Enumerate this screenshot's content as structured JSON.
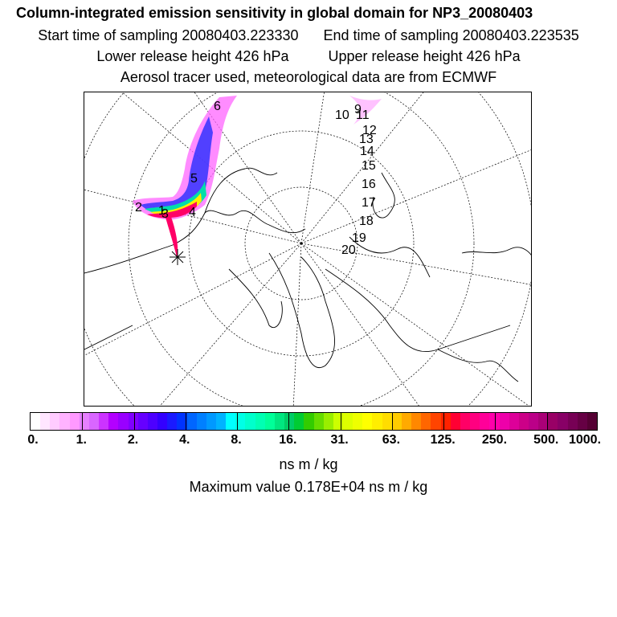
{
  "header": {
    "title": "Column-integrated emission sensitivity in global domain for NP3_20080403",
    "start_time": "Start time of sampling 20080403.223330",
    "end_time": "End time of sampling 20080403.223535",
    "lower_release": "Lower release height  426 hPa",
    "upper_release": "Upper release height  426 hPa",
    "tracer_info": "Aerosol tracer used, meteorological data are from ECMWF"
  },
  "map": {
    "trajectory_labels": [
      "1",
      "2",
      "3",
      "4",
      "5",
      "6",
      "9",
      "10",
      "11",
      "12",
      "13",
      "14",
      "15",
      "16",
      "17",
      "18",
      "19",
      "20"
    ],
    "release_marker": "release-site-star"
  },
  "colorbar": {
    "tick_labels": [
      "0.",
      "1.",
      "2.",
      "4.",
      "8.",
      "16.",
      "31.",
      "63.",
      "125.",
      "250.",
      "500.",
      "1000."
    ],
    "colors": [
      "#ffffff",
      "#ffe6ff",
      "#ffccff",
      "#ffb3ff",
      "#ff99ff",
      "#e680ff",
      "#d966ff",
      "#cc33ff",
      "#b300ff",
      "#9900ff",
      "#8000ff",
      "#6600ff",
      "#4d00ff",
      "#3300ff",
      "#1a1aff",
      "#0033ff",
      "#0066ff",
      "#0080ff",
      "#0099ff",
      "#00b3ff",
      "#00ffff",
      "#00ffe6",
      "#00ffcc",
      "#00ffb3",
      "#00ff99",
      "#00e680",
      "#00cc66",
      "#00cc33",
      "#33cc00",
      "#66dd00",
      "#99ee00",
      "#ccff00",
      "#ddff00",
      "#eeff00",
      "#ffff00",
      "#ffee00",
      "#ffdd00",
      "#ffcc00",
      "#ffaa00",
      "#ff8800",
      "#ff6600",
      "#ff4400",
      "#ff2200",
      "#ff0033",
      "#ff0066",
      "#ff0080",
      "#ff0099",
      "#ff00aa",
      "#ee00aa",
      "#dd0099",
      "#cc0088",
      "#bb0088",
      "#aa0077",
      "#990066",
      "#880066",
      "#770055",
      "#660044",
      "#550033"
    ],
    "units": "ns m / kg",
    "max_value": "Maximum value  0.178E+04 ns m / kg"
  }
}
